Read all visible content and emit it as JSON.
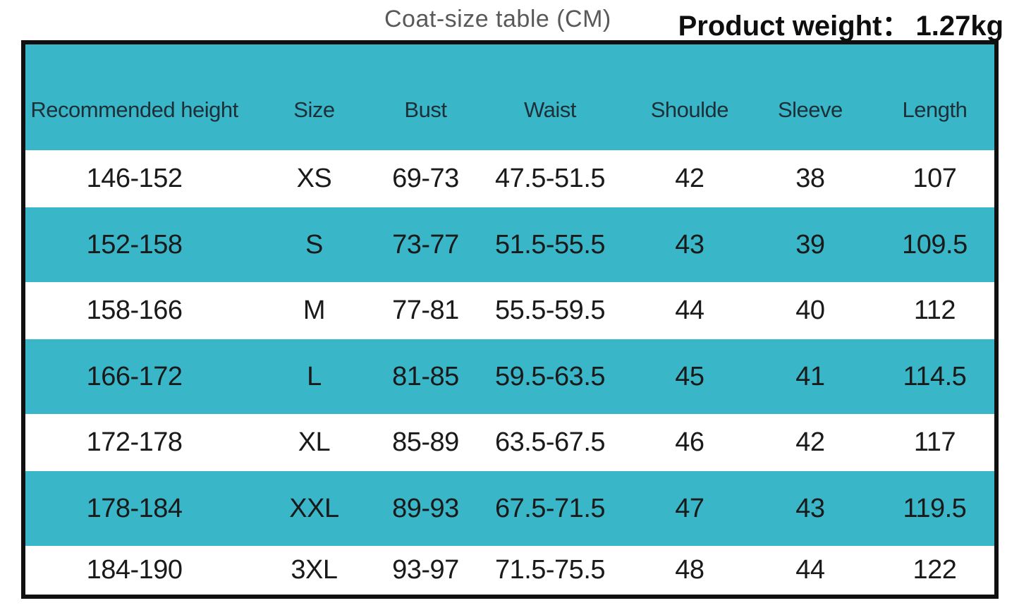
{
  "header": {
    "title": "Coat-size table (CM)",
    "weight_label": "Product weight：",
    "weight_value": "1.27kg"
  },
  "chart_data": {
    "type": "table",
    "title": "Coat-size table (CM)",
    "product_weight": "1.27kg",
    "unit": "CM",
    "columns": [
      "Recommended height",
      "Size",
      "Bust",
      "Waist",
      "Shoulde",
      "Sleeve",
      "Length"
    ],
    "rows": [
      [
        "146-152",
        "XS",
        "69-73",
        "47.5-51.5",
        "42",
        "38",
        "107"
      ],
      [
        "152-158",
        "S",
        "73-77",
        "51.5-55.5",
        "43",
        "39",
        "109.5"
      ],
      [
        "158-166",
        "M",
        "77-81",
        "55.5-59.5",
        "44",
        "40",
        "112"
      ],
      [
        "166-172",
        "L",
        "81-85",
        "59.5-63.5",
        "45",
        "41",
        "114.5"
      ],
      [
        "172-178",
        "XL",
        "85-89",
        "63.5-67.5",
        "46",
        "42",
        "117"
      ],
      [
        "178-184",
        "XXL",
        "89-93",
        "67.5-71.5",
        "47",
        "43",
        "119.5"
      ],
      [
        "184-190",
        "3XL",
        "93-97",
        "71.5-75.5",
        "48",
        "44",
        "122"
      ]
    ],
    "layout_hints": {
      "row_striping": "white/teal alternating, header teal",
      "border": "thick black outer frame, no inner gridlines"
    }
  },
  "colors": {
    "teal": "#3ab6c9",
    "border": "#101010",
    "title_gray": "#595959",
    "weight_text": "#0e0e0e",
    "cell_text": "#1a1a1a"
  }
}
